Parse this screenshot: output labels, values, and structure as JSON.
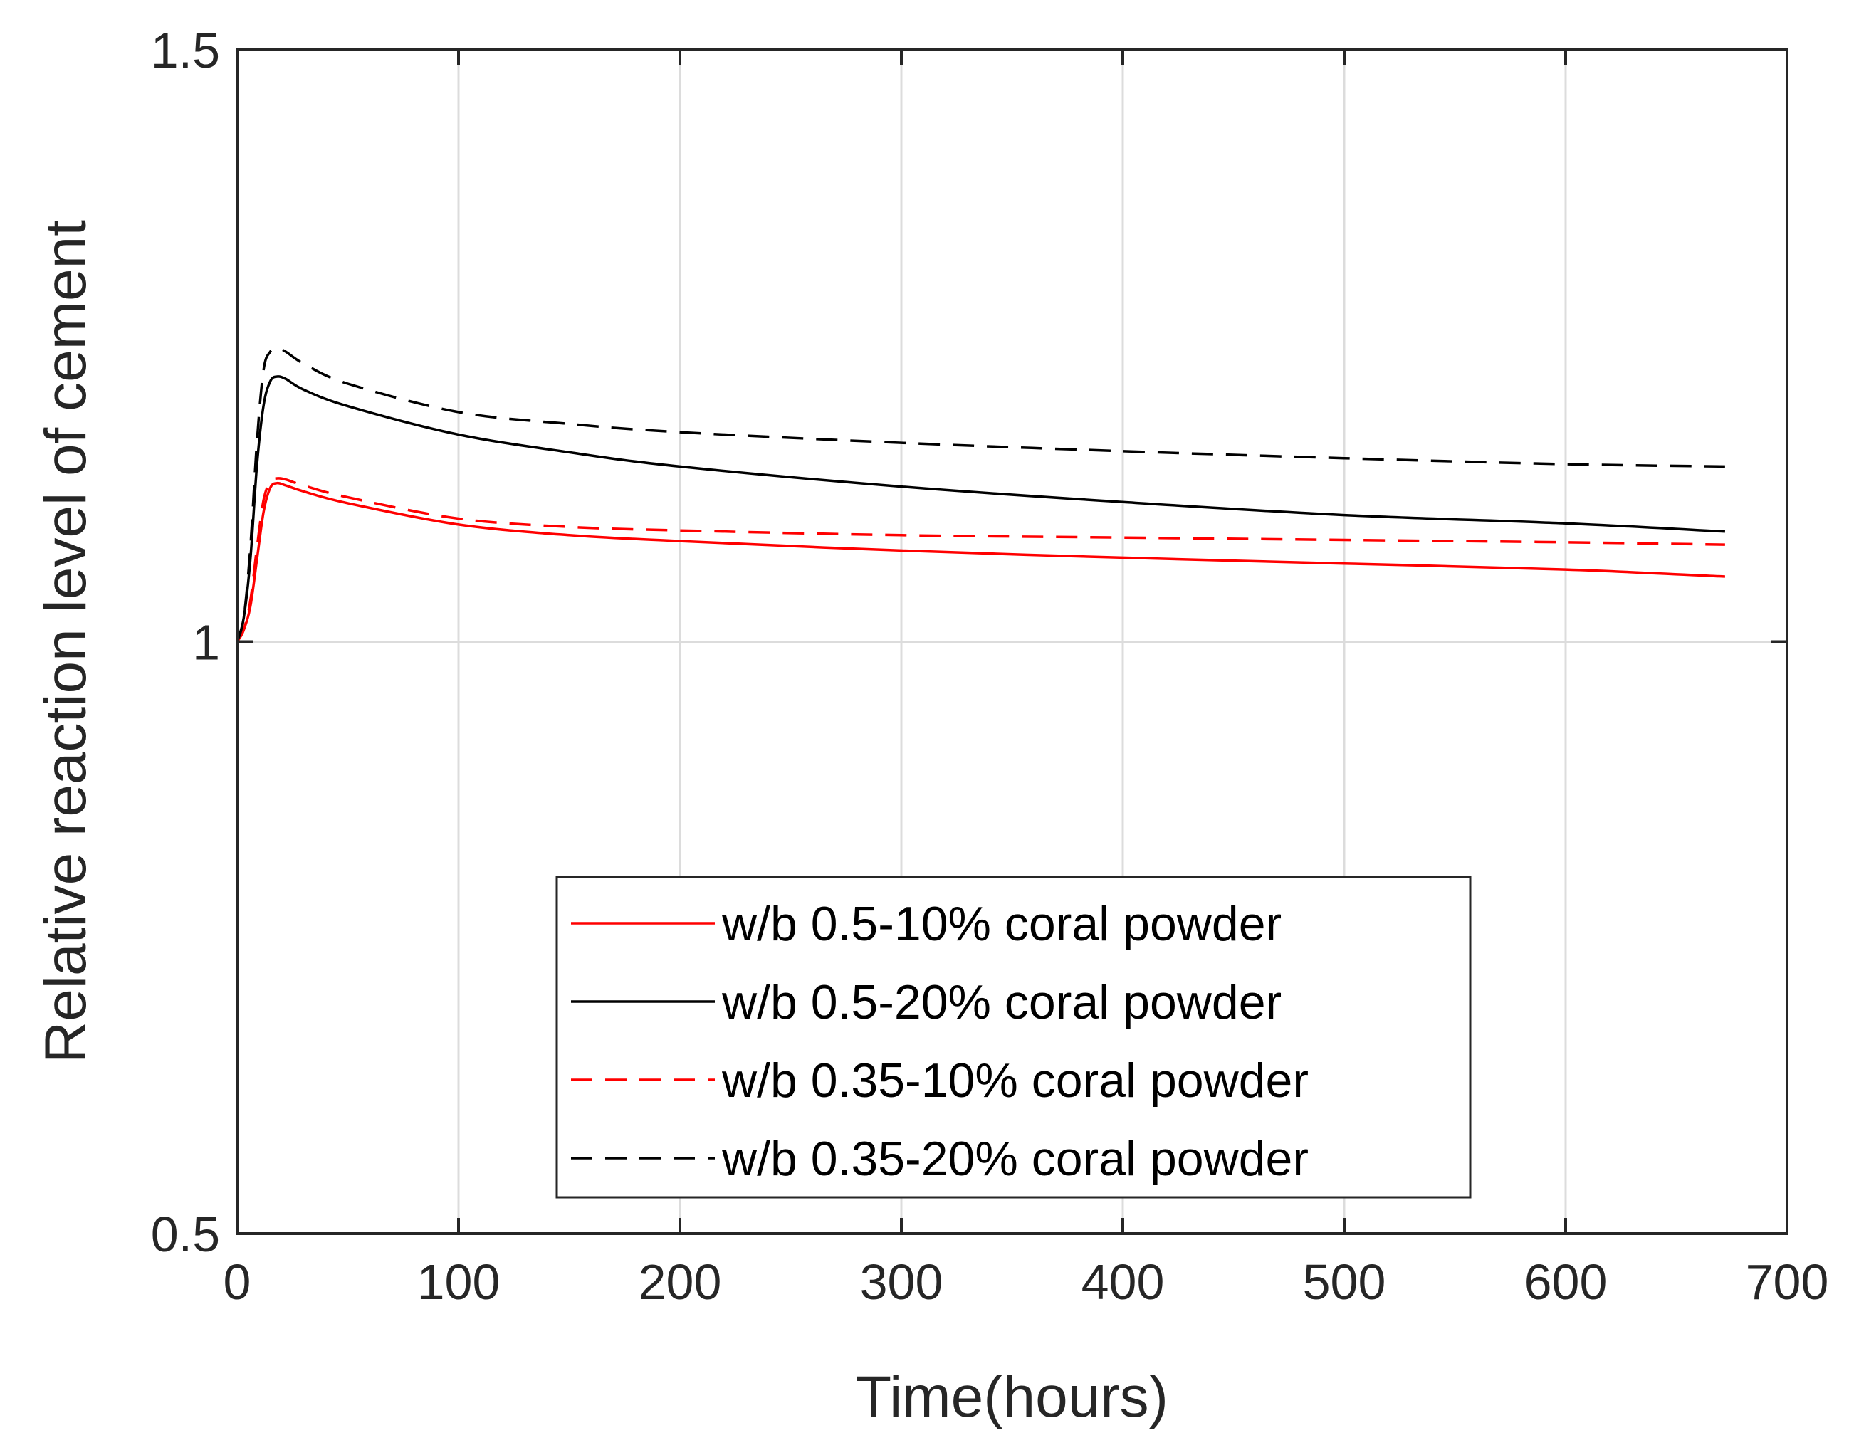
{
  "chart_data": {
    "type": "line",
    "title": "",
    "xlabel": "Time(hours)",
    "ylabel": "Relative reaction level of cement",
    "xlim": [
      0,
      700
    ],
    "ylim": [
      0.5,
      1.5
    ],
    "xticks": [
      0,
      100,
      200,
      300,
      400,
      500,
      600,
      700
    ],
    "xtick_labels": [
      "0",
      "100",
      "200",
      "300",
      "400",
      "500",
      "600",
      "700"
    ],
    "yticks": [
      0.5,
      1,
      1.5
    ],
    "ytick_labels": [
      "0.5",
      "1",
      "1.5"
    ],
    "grid": true,
    "legend_position": "bottom-center",
    "series": [
      {
        "name": "w/b 0.5-10% coral powder",
        "color": "#ff0000",
        "dash": "solid",
        "x": [
          0,
          3,
          6,
          9,
          12,
          15,
          18,
          22,
          30,
          50,
          100,
          150,
          200,
          300,
          400,
          500,
          600,
          672
        ],
        "y": [
          1.0,
          1.01,
          1.03,
          1.07,
          1.11,
          1.13,
          1.134,
          1.132,
          1.127,
          1.117,
          1.099,
          1.09,
          1.085,
          1.077,
          1.071,
          1.066,
          1.061,
          1.055
        ]
      },
      {
        "name": "w/b 0.5-20% coral powder",
        "color": "#000000",
        "dash": "solid",
        "x": [
          0,
          3,
          6,
          9,
          12,
          15,
          18,
          22,
          30,
          50,
          100,
          150,
          200,
          300,
          400,
          500,
          600,
          672
        ],
        "y": [
          1.0,
          1.02,
          1.07,
          1.15,
          1.2,
          1.22,
          1.224,
          1.222,
          1.213,
          1.199,
          1.175,
          1.16,
          1.148,
          1.131,
          1.118,
          1.107,
          1.1,
          1.093
        ]
      },
      {
        "name": "w/b 0.35-10% coral powder",
        "color": "#ff0000",
        "dash": "dashed",
        "x": [
          0,
          3,
          6,
          9,
          12,
          15,
          18,
          22,
          30,
          50,
          100,
          150,
          200,
          300,
          400,
          500,
          600,
          672
        ],
        "y": [
          1.0,
          1.01,
          1.035,
          1.08,
          1.12,
          1.135,
          1.138,
          1.137,
          1.132,
          1.122,
          1.104,
          1.097,
          1.094,
          1.09,
          1.088,
          1.086,
          1.084,
          1.082
        ]
      },
      {
        "name": "w/b 0.35-20% coral powder",
        "color": "#000000",
        "dash": "dashed",
        "x": [
          0,
          3,
          6,
          9,
          12,
          15,
          18,
          22,
          30,
          50,
          100,
          150,
          200,
          300,
          400,
          500,
          600,
          672
        ],
        "y": [
          1.0,
          1.02,
          1.08,
          1.17,
          1.23,
          1.245,
          1.248,
          1.245,
          1.235,
          1.218,
          1.194,
          1.184,
          1.177,
          1.168,
          1.161,
          1.155,
          1.15,
          1.148
        ]
      }
    ]
  }
}
